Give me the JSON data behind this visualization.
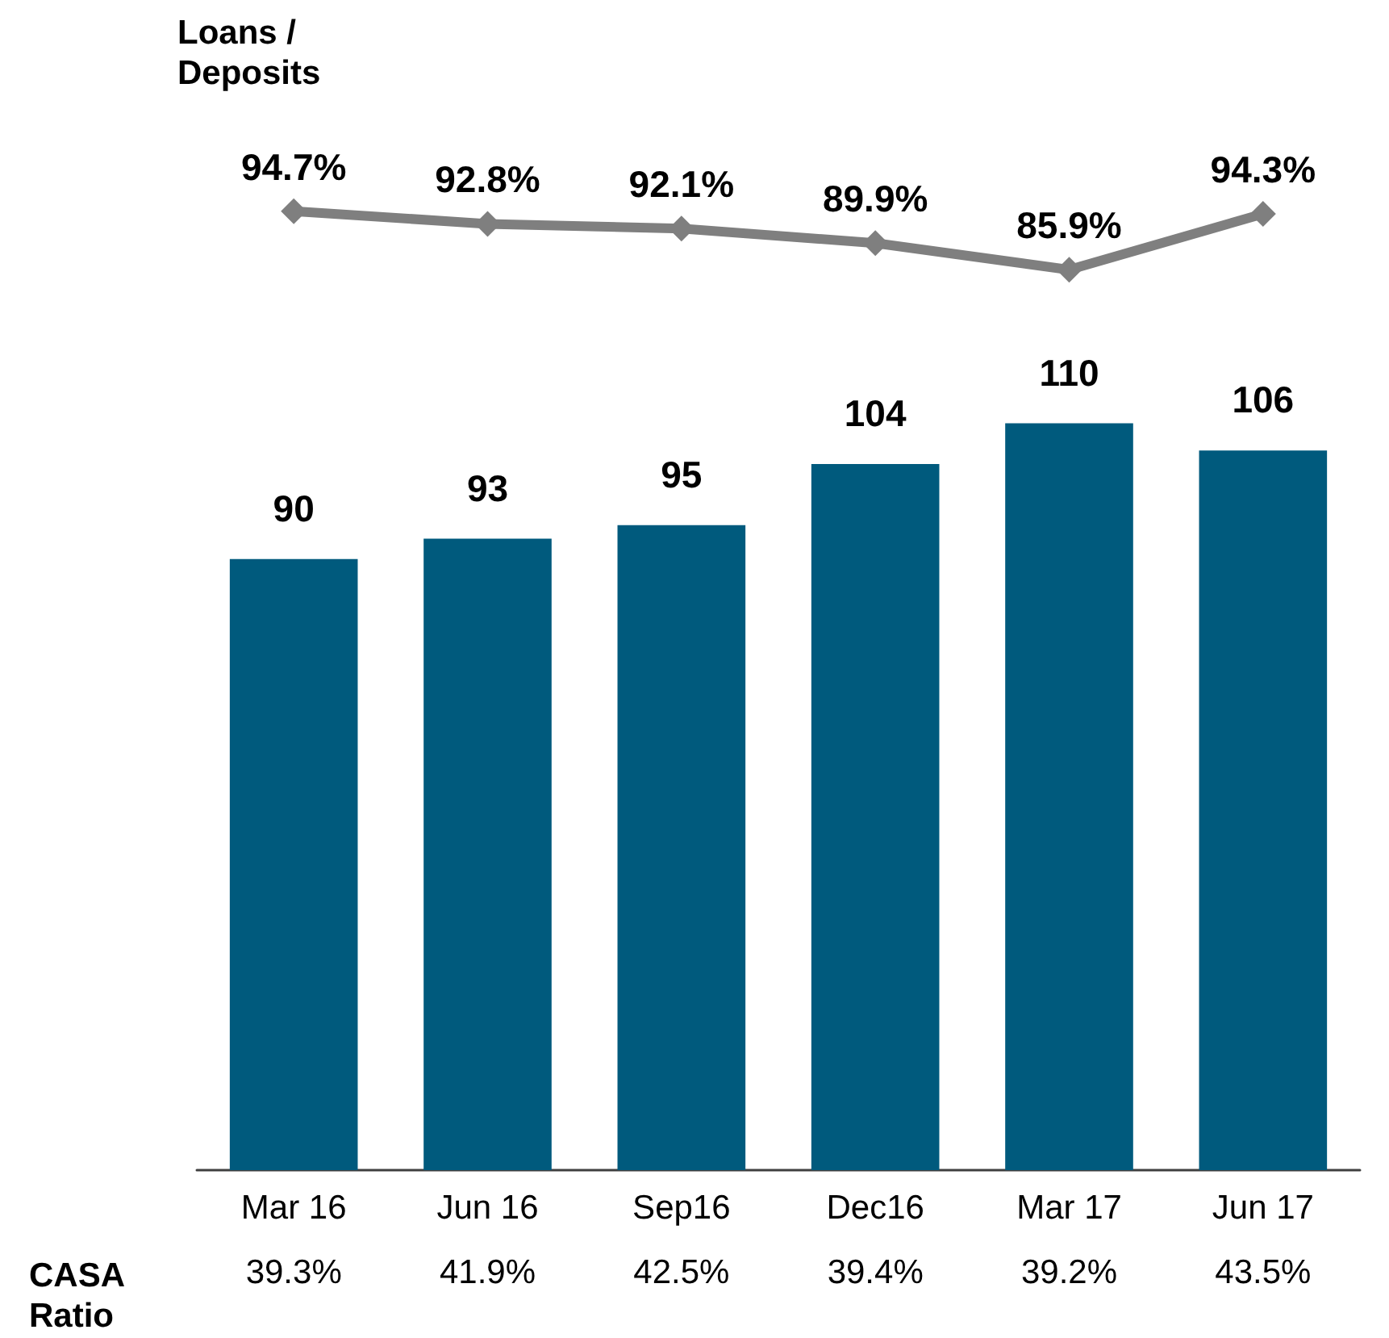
{
  "chart_data": [
    {
      "type": "line",
      "categories": [
        null,
        null,
        null,
        null,
        null,
        null
      ],
      "series": [
        {
          "name": "Loans / Deposits",
          "color": "#7f7f7f",
          "values": [
            94.7,
            92.8,
            92.1,
            89.9,
            85.9,
            94.3
          ],
          "value_labels": [
            "94.7%",
            "92.8%",
            "92.1%",
            "89.9%",
            "85.9%",
            "94.3%"
          ]
        }
      ],
      "marker": "diamond",
      "line_style": "solid",
      "grid": false,
      "legend": false,
      "tick_labels": false
    },
    {
      "type": "bar",
      "categories": [
        "Mar 16",
        "Jun 16",
        "Sep16",
        "Dec16",
        "Mar 17",
        "Jun 17"
      ],
      "series": [
        {
          "color": "#005a7d",
          "values": [
            90,
            93,
            95,
            104,
            110,
            106
          ]
        }
      ],
      "data_labels": true,
      "grid": false,
      "legend": false,
      "tick_labels": "x",
      "annotations": [
        "CASA\nRatio",
        "39.3%",
        "41.9%",
        "42.5%",
        "39.4%",
        "39.2%",
        "43.5%"
      ]
    }
  ]
}
